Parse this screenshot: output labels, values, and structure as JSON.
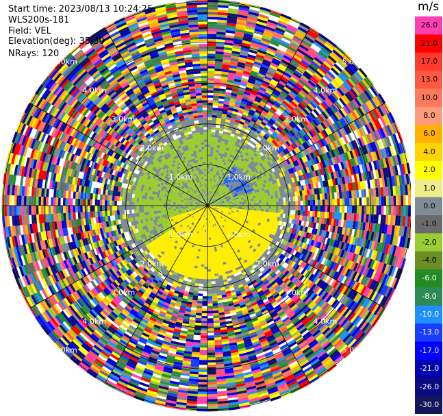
{
  "header": {
    "start_time": "Start time: 2023/08/13 10:24:25",
    "instrument": "WLS200s-181",
    "field": "Field: VEL",
    "elevation": "Elevation(deg): 35.30",
    "nrays": "NRays: 120"
  },
  "colorbar": {
    "unit": "m/s",
    "entries": [
      {
        "label": "26.0",
        "color": "#ff3fb0"
      },
      {
        "label": "21.0",
        "color": "#ff0000"
      },
      {
        "label": "17.0",
        "color": "#ff3a2a"
      },
      {
        "label": "13.0",
        "color": "#ff5a40"
      },
      {
        "label": "10.0",
        "color": "#ff7a5c"
      },
      {
        "label": "8.0",
        "color": "#ff9a7a"
      },
      {
        "label": "6.0",
        "color": "#ffb000"
      },
      {
        "label": "4.0",
        "color": "#ffd400"
      },
      {
        "label": "2.0",
        "color": "#ffff00"
      },
      {
        "label": "1.0",
        "color": "#eeee88"
      },
      {
        "label": "0.0",
        "color": "#7f8c96"
      },
      {
        "label": "-1.0",
        "color": "#6a6a6a"
      },
      {
        "label": "-2.0",
        "color": "#9acd32"
      },
      {
        "label": "-4.0",
        "color": "#6b8e23"
      },
      {
        "label": "-6.0",
        "color": "#228b22"
      },
      {
        "label": "-8.0",
        "color": "#2e8b57"
      },
      {
        "label": "-10.0",
        "color": "#1e90ff"
      },
      {
        "label": "-13.0",
        "color": "#1a3cff"
      },
      {
        "label": "-17.0",
        "color": "#0000ff"
      },
      {
        "label": "-21.0",
        "color": "#0000b0"
      },
      {
        "label": "-26.0",
        "color": "#0b0b80"
      },
      {
        "label": "-30.0",
        "color": "#14145a"
      }
    ]
  },
  "chart_data": {
    "type": "heatmap",
    "projection": "polar-ppi",
    "unit": "m/s",
    "vmin": -30.0,
    "vmax": 26.0,
    "range_ring_labels": [
      "1.0km",
      "2.0km",
      "3.0km",
      "4.0km",
      "5.0km"
    ],
    "max_range_km": 5.0,
    "rays": 120,
    "regions": [
      {
        "range_km": [
          0.0,
          1.8
        ],
        "sector": "south-east",
        "velocity": 2.0,
        "description_color": "yellow"
      },
      {
        "range_km": [
          0.0,
          1.8
        ],
        "sector": "west/north",
        "velocity": -2.0,
        "description_color": "olive"
      },
      {
        "range_km": [
          0.6,
          1.2
        ],
        "sector": "north-east",
        "velocity": -10.0,
        "description_color": "blue"
      },
      {
        "range_km": [
          1.8,
          2.2
        ],
        "sector": "all",
        "velocity": 0.0,
        "description_color": "gray"
      },
      {
        "range_km": [
          2.2,
          5.0
        ],
        "sector": "all",
        "velocity": null,
        "description_color": "noise"
      }
    ]
  }
}
